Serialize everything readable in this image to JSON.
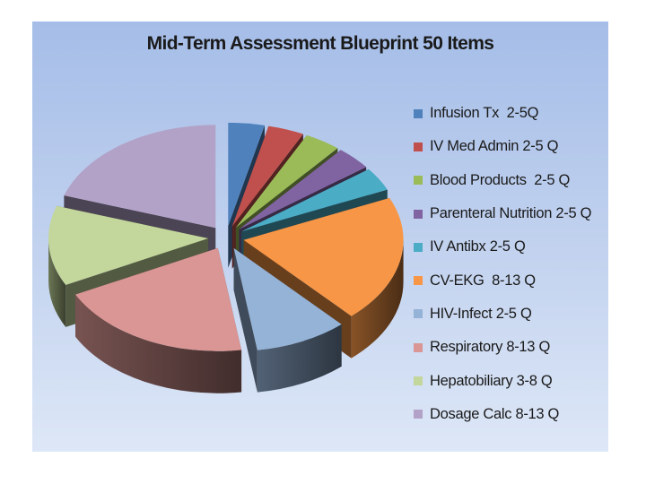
{
  "chart_data": {
    "type": "pie",
    "title": "Mid-Term Assessment Blueprint 50 Items",
    "legend_position": "right",
    "style": "3d-exploded",
    "categories": [
      "Infusion Tx  2-5Q",
      "IV Med Admin 2-5 Q",
      "Blood Products  2-5 Q",
      "Parenteral Nutrition 2-5 Q",
      "IV Antibx 2-5 Q",
      "CV-EKG  8-13 Q",
      "HIV-Infect 2-5 Q",
      "Respiratory 8-13 Q",
      "Hepatobiliary 3-8 Q",
      "Dosage Calc 8-13 Q"
    ],
    "values": [
      3.5,
      3.5,
      3.5,
      3.5,
      3.5,
      19,
      9,
      19,
      12,
      19
    ],
    "colors": [
      "#4f81bd",
      "#c0504d",
      "#9bbb59",
      "#8064a2",
      "#4bacc6",
      "#f79646",
      "#95b3d7",
      "#d99694",
      "#c3d69b",
      "#b3a2c7"
    ]
  }
}
